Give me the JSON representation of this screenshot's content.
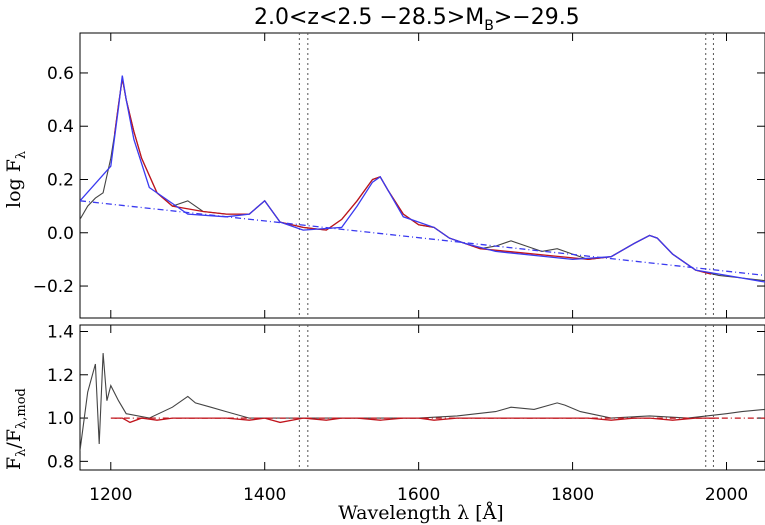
{
  "chart_data": {
    "title": "2.0<z<2.5 −28.5>M",
    "title_sub": "B",
    "title_tail": ">−29.5",
    "xlabel": "Wavelength λ [Å]",
    "xlim": [
      1160,
      2050
    ],
    "xticks": [
      1200,
      1400,
      1600,
      1800,
      2000
    ],
    "xtick_labels": [
      "1200",
      "1400",
      "1600",
      "1800",
      "2000"
    ],
    "vlines": [
      1445,
      1456,
      1973,
      1983
    ],
    "panels": [
      {
        "type": "line",
        "ylabel": "log F",
        "ylabel_sub": "λ",
        "ylim": [
          -0.32,
          0.75
        ],
        "yticks": [
          -0.2,
          0.0,
          0.2,
          0.4,
          0.6
        ],
        "ytick_labels": [
          "−0.2",
          "0.0",
          "0.2",
          "0.4",
          "0.6"
        ],
        "colors": {
          "data": "#444444",
          "fit": "#c0141c",
          "model": "#3a3af0",
          "continuum": "#3a3af0"
        },
        "series": [
          {
            "key": "data",
            "x": [
              1160,
              1170,
              1180,
              1190,
              1200,
              1205,
              1210,
              1215,
              1220,
              1230,
              1240,
              1260,
              1280,
              1300,
              1320,
              1350,
              1380,
              1400,
              1420,
              1450,
              1480,
              1500,
              1520,
              1540,
              1550,
              1560,
              1580,
              1600,
              1620,
              1640,
              1660,
              1680,
              1700,
              1720,
              1740,
              1760,
              1780,
              1800,
              1820,
              1850,
              1880,
              1900,
              1910,
              1930,
              1960,
              1990,
              2020,
              2050
            ],
            "y": [
              0.05,
              0.1,
              0.13,
              0.15,
              0.28,
              0.37,
              0.48,
              0.58,
              0.5,
              0.38,
              0.28,
              0.15,
              0.1,
              0.12,
              0.08,
              0.07,
              0.07,
              0.12,
              0.04,
              0.02,
              0.01,
              0.05,
              0.12,
              0.2,
              0.21,
              0.16,
              0.07,
              0.03,
              0.02,
              -0.02,
              -0.04,
              -0.06,
              -0.05,
              -0.03,
              -0.05,
              -0.07,
              -0.06,
              -0.08,
              -0.1,
              -0.09,
              -0.04,
              -0.01,
              -0.02,
              -0.08,
              -0.14,
              -0.16,
              -0.17,
              -0.18
            ]
          },
          {
            "key": "fit",
            "x": [
              1205,
              1210,
              1215,
              1220,
              1230,
              1240,
              1260,
              1280,
              1320,
              1350,
              1380,
              1400,
              1420,
              1450,
              1480,
              1500,
              1520,
              1540,
              1550,
              1560,
              1580,
              1600,
              1620,
              1640,
              1660,
              1680,
              1820,
              1850,
              1880,
              1900,
              1910,
              1930,
              1960,
              1980
            ],
            "y": [
              0.37,
              0.48,
              0.58,
              0.5,
              0.38,
              0.28,
              0.15,
              0.1,
              0.08,
              0.07,
              0.07,
              0.12,
              0.04,
              0.02,
              0.01,
              0.05,
              0.12,
              0.2,
              0.21,
              0.16,
              0.07,
              0.03,
              0.02,
              -0.02,
              -0.04,
              -0.06,
              -0.1,
              -0.09,
              -0.04,
              -0.01,
              -0.02,
              -0.08,
              -0.14,
              -0.155
            ]
          },
          {
            "key": "model",
            "x": [
              1160,
              1200,
              1210,
              1215,
              1220,
              1230,
              1250,
              1300,
              1350,
              1380,
              1400,
              1420,
              1450,
              1500,
              1520,
              1540,
              1550,
              1560,
              1580,
              1620,
              1640,
              1660,
              1700,
              1800,
              1850,
              1880,
              1900,
              1910,
              1930,
              1960,
              2000,
              2050
            ],
            "y": [
              0.12,
              0.25,
              0.47,
              0.59,
              0.5,
              0.35,
              0.17,
              0.07,
              0.06,
              0.07,
              0.12,
              0.04,
              0.01,
              0.02,
              0.1,
              0.19,
              0.21,
              0.16,
              0.06,
              0.02,
              -0.02,
              -0.04,
              -0.07,
              -0.1,
              -0.09,
              -0.04,
              -0.01,
              -0.02,
              -0.08,
              -0.14,
              -0.16,
              -0.185
            ]
          },
          {
            "key": "continuum",
            "dashed": true,
            "x": [
              1160,
              2050
            ],
            "y": [
              0.12,
              -0.16
            ]
          }
        ]
      },
      {
        "type": "line",
        "ylabel": "F",
        "ylabel_sub": "λ",
        "ylabel_mid": "/F",
        "ylabel_sub2": "λ,mod",
        "ylim": [
          0.76,
          1.43
        ],
        "yticks": [
          0.8,
          1.0,
          1.2,
          1.4
        ],
        "ytick_labels": [
          "0.8",
          "1.0",
          "1.2",
          "1.4"
        ],
        "colors": {
          "data": "#444444",
          "fit": "#c0141c",
          "reference": "#c0141c"
        },
        "series": [
          {
            "key": "data",
            "x": [
              1160,
              1170,
              1180,
              1185,
              1190,
              1195,
              1200,
              1210,
              1220,
              1250,
              1280,
              1300,
              1310,
              1330,
              1350,
              1380,
              1450,
              1500,
              1550,
              1600,
              1650,
              1700,
              1720,
              1750,
              1780,
              1790,
              1810,
              1850,
              1900,
              1950,
              2000,
              2020,
              2050
            ],
            "y": [
              0.85,
              1.12,
              1.25,
              0.88,
              1.3,
              1.08,
              1.15,
              1.08,
              1.02,
              1.0,
              1.05,
              1.1,
              1.07,
              1.05,
              1.03,
              1.0,
              1.0,
              1.0,
              1.0,
              1.0,
              1.01,
              1.03,
              1.05,
              1.04,
              1.07,
              1.06,
              1.03,
              1.0,
              1.01,
              1.0,
              1.02,
              1.03,
              1.04
            ]
          },
          {
            "key": "fit",
            "x": [
              1205,
              1215,
              1225,
              1240,
              1260,
              1280,
              1350,
              1380,
              1400,
              1420,
              1450,
              1480,
              1500,
              1520,
              1550,
              1580,
              1600,
              1620,
              1650,
              1680,
              1820,
              1850,
              1880,
              1900,
              1930,
              1960,
              1990
            ],
            "y": [
              1.0,
              1.0,
              0.98,
              1.0,
              0.99,
              1.0,
              1.0,
              0.99,
              1.0,
              0.98,
              1.0,
              0.99,
              1.0,
              1.0,
              0.99,
              1.0,
              1.0,
              0.99,
              1.0,
              1.0,
              1.0,
              0.99,
              1.0,
              1.0,
              0.99,
              1.0,
              1.0
            ]
          },
          {
            "key": "reference",
            "dashed": true,
            "x": [
              1200,
              2050
            ],
            "y": [
              1.0,
              1.0
            ]
          }
        ]
      }
    ]
  }
}
